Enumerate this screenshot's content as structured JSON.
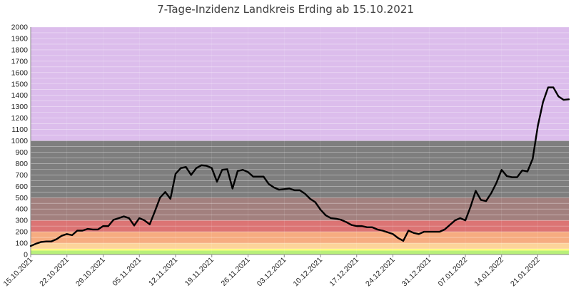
{
  "chart_data": {
    "type": "line",
    "title": "7-Tage-Inzidenz Landkreis Erding ab 15.10.2021",
    "xlabel": "",
    "ylabel": "",
    "ylim": [
      0,
      2000
    ],
    "yticks": [
      0,
      100,
      200,
      300,
      400,
      500,
      600,
      700,
      800,
      900,
      1000,
      1100,
      1200,
      1300,
      1400,
      1500,
      1600,
      1700,
      1800,
      1900,
      2000
    ],
    "xtick_labels": [
      "15.10.2021",
      "22.10.2021",
      "29.10.2021",
      "05.11.2021",
      "12.11.2021",
      "19.11.2021",
      "26.11.2021",
      "03.12.2021",
      "10.12.2021",
      "17.12.2021",
      "24.12.2021",
      "31.12.2021",
      "07.01.2022",
      "14.01.2022",
      "21.01.2022"
    ],
    "grid": true,
    "legend": "none",
    "bands": [
      {
        "from": 0,
        "to": 35,
        "color": "#b8f07a"
      },
      {
        "from": 35,
        "to": 50,
        "color": "#ffff70"
      },
      {
        "from": 50,
        "to": 100,
        "color": "#fdd49a"
      },
      {
        "from": 100,
        "to": 200,
        "color": "#f6ac80"
      },
      {
        "from": 200,
        "to": 300,
        "color": "#dc7474"
      },
      {
        "from": 300,
        "to": 500,
        "color": "#a2807e"
      },
      {
        "from": 500,
        "to": 1000,
        "color": "#7e7e7e"
      },
      {
        "from": 1000,
        "to": 2000,
        "color": "#dcbdec"
      }
    ],
    "series": [
      {
        "color": "#000000",
        "start": "15.10.2021",
        "values": [
          75,
          95,
          110,
          115,
          115,
          135,
          165,
          180,
          170,
          210,
          210,
          225,
          220,
          220,
          250,
          250,
          305,
          320,
          335,
          320,
          255,
          320,
          300,
          265,
          380,
          500,
          550,
          490,
          710,
          760,
          770,
          700,
          760,
          785,
          780,
          760,
          640,
          745,
          750,
          580,
          735,
          745,
          725,
          685,
          685,
          685,
          620,
          590,
          570,
          575,
          580,
          565,
          565,
          535,
          490,
          460,
          395,
          345,
          320,
          315,
          305,
          285,
          260,
          250,
          250,
          240,
          240,
          220,
          210,
          195,
          180,
          145,
          120,
          210,
          190,
          180,
          200,
          200,
          200,
          200,
          220,
          260,
          300,
          320,
          300,
          420,
          560,
          480,
          470,
          540,
          630,
          745,
          690,
          680,
          680,
          740,
          730,
          840,
          1130,
          1340,
          1470,
          1470,
          1390,
          1360,
          1365
        ]
      }
    ]
  }
}
